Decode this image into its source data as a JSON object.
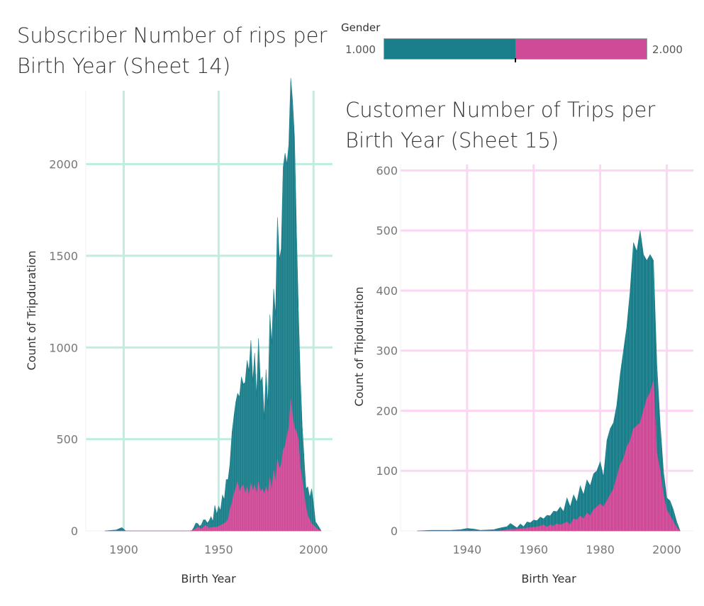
{
  "legend": {
    "title": "Gender",
    "min_label": "1.000",
    "max_label": "2.000",
    "colors": [
      "#1b7f8b",
      "#cf4b97"
    ],
    "split_fraction": 0.5
  },
  "chart_data": [
    {
      "type": "area",
      "title": "Subscriber Number of  rips per Birth Year (Sheet 14)",
      "xlabel": "Birth Year",
      "ylabel": "Count of Tripduration",
      "xlim": [
        1880,
        2010
      ],
      "ylim": [
        0,
        2400
      ],
      "xticks": [
        1900,
        1950,
        2000
      ],
      "yticks": [
        0,
        500,
        1000,
        1500,
        2000
      ],
      "x_tick_labels": [
        "1900",
        "1950",
        "2000"
      ],
      "y_tick_labels": [
        "0",
        "500",
        "1000",
        "1500",
        "2000"
      ],
      "grid": true,
      "grid_color": "#bfeee0",
      "stacked": true,
      "series": [
        {
          "name": "1.000",
          "color": "#1b7f8b",
          "points": [
            [
              1890,
              0
            ],
            [
              1896,
              5
            ],
            [
              1899,
              18
            ],
            [
              1901,
              0
            ],
            [
              1936,
              0
            ],
            [
              1938,
              30
            ],
            [
              1940,
              10
            ],
            [
              1942,
              40
            ],
            [
              1944,
              20
            ],
            [
              1946,
              60
            ],
            [
              1947,
              30
            ],
            [
              1948,
              120
            ],
            [
              1949,
              70
            ],
            [
              1950,
              110
            ],
            [
              1951,
              80
            ],
            [
              1952,
              160
            ],
            [
              1953,
              130
            ],
            [
              1954,
              230
            ],
            [
              1955,
              220
            ],
            [
              1956,
              250
            ],
            [
              1957,
              380
            ],
            [
              1958,
              420
            ],
            [
              1959,
              470
            ],
            [
              1960,
              480
            ],
            [
              1961,
              520
            ],
            [
              1962,
              600
            ],
            [
              1963,
              550
            ],
            [
              1964,
              610
            ],
            [
              1965,
              690
            ],
            [
              1966,
              680
            ],
            [
              1967,
              780
            ],
            [
              1968,
              590
            ],
            [
              1969,
              720
            ],
            [
              1970,
              530
            ],
            [
              1971,
              780
            ],
            [
              1972,
              600
            ],
            [
              1973,
              610
            ],
            [
              1974,
              410
            ],
            [
              1975,
              640
            ],
            [
              1976,
              480
            ],
            [
              1977,
              890
            ],
            [
              1978,
              800
            ],
            [
              1979,
              990
            ],
            [
              1980,
              900
            ],
            [
              1981,
              1320
            ],
            [
              1982,
              1140
            ],
            [
              1983,
              1180
            ],
            [
              1984,
              1540
            ],
            [
              1985,
              1600
            ],
            [
              1986,
              1480
            ],
            [
              1987,
              1550
            ],
            [
              1988,
              1750
            ],
            [
              1989,
              1720
            ],
            [
              1990,
              1580
            ],
            [
              1991,
              1110
            ],
            [
              1992,
              720
            ],
            [
              1993,
              500
            ],
            [
              1994,
              300
            ],
            [
              1995,
              200
            ],
            [
              1996,
              100
            ],
            [
              1997,
              160
            ],
            [
              1998,
              120
            ],
            [
              1999,
              190
            ],
            [
              2000,
              120
            ],
            [
              2001,
              30
            ],
            [
              2002,
              25
            ],
            [
              2004,
              0
            ]
          ]
        },
        {
          "name": "2.000",
          "color": "#cf4b97",
          "points": [
            [
              1890,
              0
            ],
            [
              1935,
              0
            ],
            [
              1937,
              5
            ],
            [
              1939,
              20
            ],
            [
              1941,
              10
            ],
            [
              1943,
              30
            ],
            [
              1945,
              15
            ],
            [
              1947,
              20
            ],
            [
              1949,
              20
            ],
            [
              1951,
              30
            ],
            [
              1953,
              40
            ],
            [
              1955,
              60
            ],
            [
              1956,
              120
            ],
            [
              1957,
              150
            ],
            [
              1958,
              200
            ],
            [
              1959,
              230
            ],
            [
              1960,
              270
            ],
            [
              1961,
              210
            ],
            [
              1962,
              240
            ],
            [
              1963,
              250
            ],
            [
              1964,
              200
            ],
            [
              1965,
              240
            ],
            [
              1966,
              190
            ],
            [
              1967,
              260
            ],
            [
              1968,
              220
            ],
            [
              1969,
              250
            ],
            [
              1970,
              200
            ],
            [
              1971,
              270
            ],
            [
              1972,
              210
            ],
            [
              1973,
              230
            ],
            [
              1974,
              200
            ],
            [
              1975,
              240
            ],
            [
              1976,
              200
            ],
            [
              1977,
              290
            ],
            [
              1978,
              220
            ],
            [
              1979,
              330
            ],
            [
              1980,
              270
            ],
            [
              1981,
              390
            ],
            [
              1982,
              340
            ],
            [
              1983,
              360
            ],
            [
              1984,
              440
            ],
            [
              1985,
              460
            ],
            [
              1986,
              520
            ],
            [
              1987,
              560
            ],
            [
              1988,
              720
            ],
            [
              1989,
              620
            ],
            [
              1990,
              560
            ],
            [
              1991,
              540
            ],
            [
              1992,
              500
            ],
            [
              1993,
              350
            ],
            [
              1994,
              280
            ],
            [
              1995,
              200
            ],
            [
              1996,
              130
            ],
            [
              1997,
              80
            ],
            [
              1998,
              60
            ],
            [
              1999,
              40
            ],
            [
              2000,
              30
            ],
            [
              2001,
              20
            ],
            [
              2002,
              10
            ],
            [
              2004,
              0
            ]
          ]
        }
      ]
    },
    {
      "type": "area",
      "title": "Customer Number of Trips per Birth Year (Sheet 15)",
      "xlabel": "Birth Year",
      "ylabel": "Count of Tripduration",
      "xlim": [
        1920,
        2008
      ],
      "ylim": [
        0,
        610
      ],
      "xticks": [
        1940,
        1960,
        1980,
        2000
      ],
      "yticks": [
        0,
        100,
        200,
        300,
        400,
        500,
        600
      ],
      "x_tick_labels": [
        "1940",
        "1960",
        "1980",
        "2000"
      ],
      "y_tick_labels": [
        "0",
        "100",
        "200",
        "300",
        "400",
        "500",
        "600"
      ],
      "grid": true,
      "grid_color": "#fcd6f3",
      "stacked": true,
      "series": [
        {
          "name": "1.000",
          "color": "#1b7f8b",
          "points": [
            [
              1925,
              0
            ],
            [
              1929,
              1
            ],
            [
              1935,
              1
            ],
            [
              1938,
              2
            ],
            [
              1940,
              4
            ],
            [
              1942,
              3
            ],
            [
              1944,
              1
            ],
            [
              1948,
              2
            ],
            [
              1950,
              5
            ],
            [
              1952,
              5
            ],
            [
              1953,
              10
            ],
            [
              1955,
              2
            ],
            [
              1956,
              8
            ],
            [
              1957,
              3
            ],
            [
              1958,
              10
            ],
            [
              1959,
              8
            ],
            [
              1960,
              12
            ],
            [
              1961,
              10
            ],
            [
              1962,
              15
            ],
            [
              1963,
              10
            ],
            [
              1964,
              20
            ],
            [
              1965,
              15
            ],
            [
              1966,
              25
            ],
            [
              1967,
              20
            ],
            [
              1968,
              30
            ],
            [
              1969,
              20
            ],
            [
              1970,
              40
            ],
            [
              1971,
              30
            ],
            [
              1972,
              40
            ],
            [
              1973,
              30
            ],
            [
              1974,
              50
            ],
            [
              1975,
              40
            ],
            [
              1976,
              55
            ],
            [
              1977,
              50
            ],
            [
              1978,
              60
            ],
            [
              1979,
              60
            ],
            [
              1980,
              70
            ],
            [
              1981,
              50
            ],
            [
              1982,
              100
            ],
            [
              1983,
              110
            ],
            [
              1984,
              110
            ],
            [
              1985,
              120
            ],
            [
              1986,
              150
            ],
            [
              1987,
              180
            ],
            [
              1988,
              200
            ],
            [
              1989,
              250
            ],
            [
              1990,
              310
            ],
            [
              1991,
              290
            ],
            [
              1992,
              320
            ],
            [
              1993,
              260
            ],
            [
              1994,
              230
            ],
            [
              1995,
              230
            ],
            [
              1996,
              200
            ],
            [
              1997,
              150
            ],
            [
              1998,
              80
            ],
            [
              1999,
              40
            ],
            [
              2000,
              20
            ],
            [
              2001,
              25
            ],
            [
              2002,
              20
            ],
            [
              2003,
              10
            ],
            [
              2004,
              0
            ]
          ]
        },
        {
          "name": "2.000",
          "color": "#cf4b97",
          "points": [
            [
              1925,
              0
            ],
            [
              1950,
              0
            ],
            [
              1952,
              2
            ],
            [
              1955,
              3
            ],
            [
              1957,
              4
            ],
            [
              1958,
              5
            ],
            [
              1960,
              6
            ],
            [
              1962,
              8
            ],
            [
              1963,
              10
            ],
            [
              1964,
              6
            ],
            [
              1965,
              10
            ],
            [
              1966,
              8
            ],
            [
              1967,
              12
            ],
            [
              1968,
              10
            ],
            [
              1969,
              12
            ],
            [
              1970,
              15
            ],
            [
              1971,
              10
            ],
            [
              1972,
              20
            ],
            [
              1973,
              18
            ],
            [
              1974,
              25
            ],
            [
              1975,
              20
            ],
            [
              1976,
              30
            ],
            [
              1977,
              25
            ],
            [
              1978,
              35
            ],
            [
              1979,
              40
            ],
            [
              1980,
              45
            ],
            [
              1981,
              40
            ],
            [
              1982,
              50
            ],
            [
              1983,
              60
            ],
            [
              1984,
              70
            ],
            [
              1985,
              90
            ],
            [
              1986,
              110
            ],
            [
              1987,
              120
            ],
            [
              1988,
              140
            ],
            [
              1989,
              150
            ],
            [
              1990,
              170
            ],
            [
              1991,
              175
            ],
            [
              1992,
              180
            ],
            [
              1993,
              200
            ],
            [
              1994,
              220
            ],
            [
              1995,
              230
            ],
            [
              1996,
              250
            ],
            [
              1997,
              130
            ],
            [
              1998,
              100
            ],
            [
              1999,
              60
            ],
            [
              2000,
              35
            ],
            [
              2001,
              25
            ],
            [
              2002,
              15
            ],
            [
              2003,
              5
            ],
            [
              2004,
              0
            ]
          ]
        }
      ]
    }
  ]
}
